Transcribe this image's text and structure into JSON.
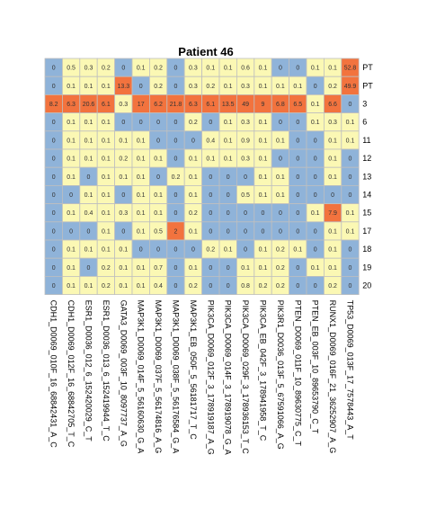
{
  "chart_data": {
    "type": "heatmap",
    "title": "Patient 46",
    "rows": [
      "PT",
      "PT",
      "3",
      "6",
      "11",
      "12",
      "13",
      "14",
      "15",
      "17",
      "18",
      "19",
      "20"
    ],
    "columns": [
      "CDH1_D0069_010F_16_68842431_A_C",
      "CDH1_D0069_012F_16_68842705_T_C",
      "ESR1_D0036_012_6_152420029_C_T",
      "ESR1_D0036_013_6_152419944_T_C",
      "GATA3_D0069_003F_10_8097737_A_G",
      "MAP3K1_D0069_014F_5_56160630_G_A",
      "MAP3K1_D0069_037F_5_56174816_A_G",
      "MAP3K1_D0069_038F_5_56176584_G_A",
      "MAP3K1_EB_050F_5_56181717_T_C",
      "PIK3CA_D0069_012F_3_178919187_A_G",
      "PIK3CA_D0069_014F_3_178919078_G_A",
      "PIK3CA_D0069_029F_3_178936153_T_C",
      "PIK3CA_EB_042F_3_178941958_T_C",
      "PIK3R1_D0036_013F_5_67591066_A_G",
      "PTEN_D0069_011F_10_89630775_C_T",
      "PTEN_EB_003F_10_89653790_C_T",
      "RUNX1_D0069_016F_21_36252907_A_G",
      "TP53_D0069_013F_17_7578443_A_T"
    ],
    "values": [
      [
        0,
        0.5,
        0.3,
        0.2,
        0,
        0.1,
        0.2,
        0,
        0.3,
        0.1,
        0.1,
        0.6,
        0.1,
        0,
        0,
        0.1,
        0.1,
        52.8
      ],
      [
        0,
        0.1,
        0.1,
        0.1,
        13.3,
        0,
        0.2,
        0,
        0.3,
        0.2,
        0.1,
        0.3,
        0.1,
        0.1,
        0.1,
        0,
        0.2,
        49.9
      ],
      [
        8.2,
        6.3,
        20.6,
        6.1,
        0.3,
        17,
        6.2,
        21.8,
        6.3,
        6.1,
        13.5,
        49,
        9,
        6.8,
        6.5,
        0.1,
        6.6,
        0
      ],
      [
        0,
        0.1,
        0.1,
        0.1,
        0,
        0,
        0,
        0,
        0.2,
        0,
        0.1,
        0.3,
        0.1,
        0,
        0,
        0.1,
        0.3,
        0.1
      ],
      [
        0,
        0.1,
        0.1,
        0.1,
        0.1,
        0.1,
        0,
        0,
        0,
        0.4,
        0.1,
        0.9,
        0.1,
        0.1,
        0,
        0,
        0.1,
        0.1
      ],
      [
        0,
        0.1,
        0.1,
        0.1,
        0.2,
        0.1,
        0.1,
        0,
        0.1,
        0.1,
        0.1,
        0.3,
        0.1,
        0,
        0,
        0,
        0.1,
        0
      ],
      [
        0,
        0.1,
        0,
        0.1,
        0.1,
        0.1,
        0,
        0.2,
        0.1,
        0,
        0,
        0,
        0.1,
        0.1,
        0,
        0,
        0.1,
        0
      ],
      [
        0,
        0,
        0.1,
        0.1,
        0,
        0.1,
        0.1,
        0,
        0.1,
        0,
        0,
        0.5,
        0.1,
        0.1,
        0,
        0,
        0,
        0
      ],
      [
        0,
        0.1,
        0.4,
        0.1,
        0.3,
        0.1,
        0.1,
        0,
        0.2,
        0,
        0,
        0,
        0,
        0,
        0,
        0.1,
        7.9,
        0.1
      ],
      [
        0,
        0,
        0,
        0.1,
        0,
        0.1,
        0.5,
        2,
        0.1,
        0,
        0,
        0,
        0,
        0,
        0,
        0,
        0.1,
        0.1
      ],
      [
        0,
        0.1,
        0.1,
        0.1,
        0.1,
        0,
        0,
        0,
        0,
        0.2,
        0.1,
        0,
        0.1,
        0.2,
        0.1,
        0,
        0.1,
        0
      ],
      [
        0,
        0.1,
        0,
        0.2,
        0.1,
        0.1,
        0.7,
        0,
        0.1,
        0,
        0,
        0.1,
        0.1,
        0.2,
        0,
        0.1,
        0.1,
        0
      ],
      [
        0,
        0.1,
        0.1,
        0.2,
        0.1,
        0.1,
        0.4,
        0,
        0.2,
        0,
        0,
        0.8,
        0.2,
        0.2,
        0,
        0,
        0.2,
        0
      ]
    ],
    "color_scale": {
      "low": "#8fb3d9",
      "mid": "#fbf8b4",
      "high": "#f2733e",
      "grid": "#bfbfbf",
      "text": "#333333"
    },
    "grid": true,
    "legend": "none"
  }
}
